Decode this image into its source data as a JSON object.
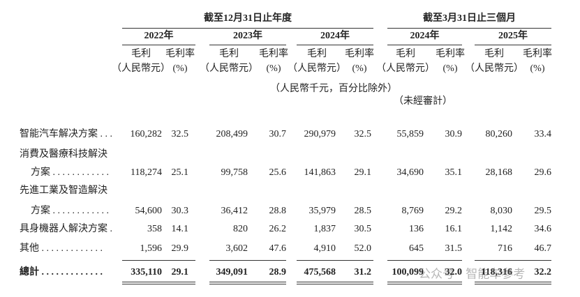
{
  "table": {
    "groups": [
      "截至12月31日止年度",
      "截至3月31日止三個月"
    ],
    "columns": [
      {
        "year": "2022年",
        "headers": [
          [
            "毛利",
            "（人民幣元）"
          ],
          [
            "毛利率",
            "(%)"
          ]
        ]
      },
      {
        "year": "2023年",
        "headers": [
          [
            "毛利",
            "（人民幣元）"
          ],
          [
            "毛利率",
            "(%)"
          ]
        ]
      },
      {
        "year": "2024年",
        "headers": [
          [
            "毛利",
            "（人民幣元）"
          ],
          [
            "毛利率",
            "(%)"
          ]
        ]
      },
      {
        "year": "2024年",
        "headers": [
          [
            "毛利",
            "（人民幣元）"
          ],
          [
            "毛利率",
            "(%)"
          ]
        ]
      },
      {
        "year": "2025年",
        "headers": [
          [
            "毛利",
            "（人民幣元）"
          ],
          [
            "毛利率",
            "(%)"
          ]
        ]
      }
    ],
    "unit_note": "（人民幣千元，百分比除外）",
    "audit_note": "（未經審計）",
    "rows": [
      {
        "label": [
          "智能汽车解决方案 . . ."
        ],
        "cells": [
          "160,282",
          "32.5",
          "208,499",
          "30.7",
          "290,979",
          "32.5",
          "55,859",
          "30.9",
          "80,260",
          "33.4"
        ]
      },
      {
        "label": [
          "消費及醫療科技解決",
          "方案 . . . . . . . . . . . ."
        ],
        "cells": [
          "118,274",
          "25.1",
          "99,758",
          "25.6",
          "141,863",
          "29.1",
          "34,690",
          "35.1",
          "28,168",
          "29.6"
        ]
      },
      {
        "label": [
          "先進工業及智造解決",
          "方案 . . . . . . . . . . . ."
        ],
        "cells": [
          "54,600",
          "30.3",
          "36,412",
          "28.8",
          "35,979",
          "28.5",
          "8,769",
          "29.2",
          "8,030",
          "29.5"
        ]
      },
      {
        "label": [
          "具身機器人解決方案 ."
        ],
        "cells": [
          "358",
          "14.1",
          "820",
          "26.2",
          "1,837",
          "30.5",
          "136",
          "16.1",
          "1,142",
          "34.6"
        ]
      },
      {
        "label": [
          "其他 . . . . . . . . . . . . ."
        ],
        "cells": [
          "1,596",
          "29.9",
          "3,602",
          "47.6",
          "4,910",
          "52.0",
          "645",
          "31.5",
          "716",
          "46.7"
        ]
      }
    ],
    "total": {
      "label": [
        "總計 . . . . . . . . . . . . ."
      ],
      "cells": [
        "335,110",
        "29.1",
        "349,091",
        "28.9",
        "475,568",
        "31.2",
        "100,099",
        "32.0",
        "118,316",
        "32.2"
      ]
    },
    "watermark": "公众号 · 智能车参考"
  }
}
